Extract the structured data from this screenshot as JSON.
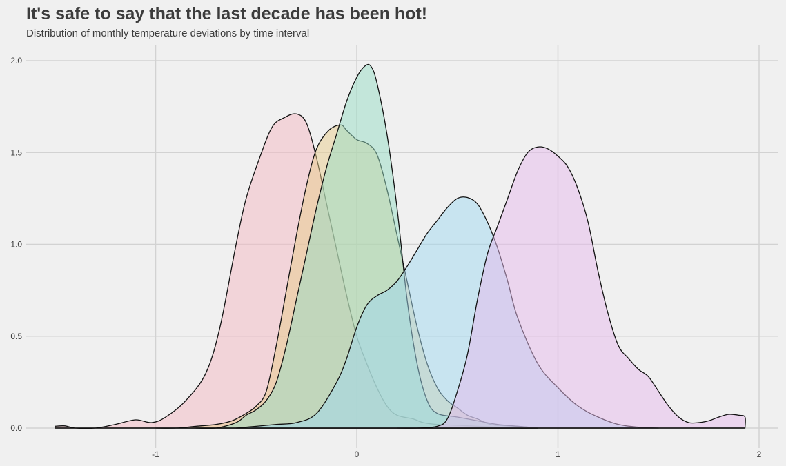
{
  "header": {
    "title": "It's safe to say that the last decade has been hot!",
    "subtitle": "Distribution of monthly temperature deviations by time interval"
  },
  "chart_data": {
    "type": "area",
    "title": "It's safe to say that the last decade has been hot!",
    "subtitle": "Distribution of monthly temperature deviations by time interval",
    "xlabel": "",
    "ylabel": "",
    "xlim": [
      -1.6,
      2.1
    ],
    "ylim": [
      0,
      2.0
    ],
    "xticks": [
      -1,
      0,
      1,
      2
    ],
    "xtick_labels": [
      "-1",
      "0",
      "1",
      "2"
    ],
    "yticks": [
      0,
      0.5,
      1.0,
      1.5,
      2.0
    ],
    "ytick_labels": [
      "0.0",
      "0.5",
      "1.0",
      "1.5",
      "2.0"
    ],
    "grid": true,
    "legend": "none",
    "series": [
      {
        "color": "#f4b8c1",
        "points": [
          [
            -1.5,
            0.01
          ],
          [
            -1.45,
            0.012
          ],
          [
            -1.4,
            0.0
          ],
          [
            -1.3,
            0.0
          ],
          [
            -1.2,
            0.02
          ],
          [
            -1.1,
            0.045
          ],
          [
            -1.02,
            0.03
          ],
          [
            -0.95,
            0.06
          ],
          [
            -0.85,
            0.15
          ],
          [
            -0.75,
            0.3
          ],
          [
            -0.68,
            0.55
          ],
          [
            -0.6,
            1.0
          ],
          [
            -0.55,
            1.25
          ],
          [
            -0.48,
            1.48
          ],
          [
            -0.42,
            1.64
          ],
          [
            -0.36,
            1.69
          ],
          [
            -0.3,
            1.71
          ],
          [
            -0.25,
            1.66
          ],
          [
            -0.2,
            1.47
          ],
          [
            -0.15,
            1.22
          ],
          [
            -0.1,
            0.97
          ],
          [
            -0.05,
            0.72
          ],
          [
            0.0,
            0.5
          ],
          [
            0.05,
            0.35
          ],
          [
            0.1,
            0.22
          ],
          [
            0.15,
            0.12
          ],
          [
            0.2,
            0.07
          ],
          [
            0.28,
            0.05
          ],
          [
            0.33,
            0.03
          ],
          [
            0.4,
            0.02
          ],
          [
            0.5,
            0.015
          ],
          [
            0.6,
            0.01
          ],
          [
            0.7,
            0.005
          ],
          [
            0.8,
            0.0
          ],
          [
            0.9,
            0.0
          ]
        ]
      },
      {
        "color": "#e8cc8c",
        "points": [
          [
            -1.0,
            0.0
          ],
          [
            -0.9,
            0.0
          ],
          [
            -0.8,
            0.01
          ],
          [
            -0.7,
            0.02
          ],
          [
            -0.62,
            0.04
          ],
          [
            -0.55,
            0.08
          ],
          [
            -0.5,
            0.12
          ],
          [
            -0.45,
            0.2
          ],
          [
            -0.4,
            0.45
          ],
          [
            -0.35,
            0.75
          ],
          [
            -0.3,
            1.05
          ],
          [
            -0.25,
            1.32
          ],
          [
            -0.2,
            1.52
          ],
          [
            -0.14,
            1.62
          ],
          [
            -0.08,
            1.65
          ],
          [
            -0.05,
            1.62
          ],
          [
            0.0,
            1.57
          ],
          [
            0.05,
            1.55
          ],
          [
            0.1,
            1.49
          ],
          [
            0.15,
            1.3
          ],
          [
            0.2,
            1.05
          ],
          [
            0.25,
            0.8
          ],
          [
            0.3,
            0.55
          ],
          [
            0.35,
            0.35
          ],
          [
            0.4,
            0.22
          ],
          [
            0.45,
            0.15
          ],
          [
            0.5,
            0.11
          ],
          [
            0.55,
            0.07
          ],
          [
            0.6,
            0.05
          ],
          [
            0.65,
            0.025
          ],
          [
            0.7,
            0.015
          ],
          [
            0.8,
            0.01
          ],
          [
            0.9,
            0.0
          ]
        ]
      },
      {
        "color": "#96dcc3",
        "points": [
          [
            -0.8,
            0.0
          ],
          [
            -0.7,
            0.0
          ],
          [
            -0.6,
            0.03
          ],
          [
            -0.55,
            0.07
          ],
          [
            -0.5,
            0.1
          ],
          [
            -0.45,
            0.15
          ],
          [
            -0.4,
            0.25
          ],
          [
            -0.35,
            0.45
          ],
          [
            -0.3,
            0.7
          ],
          [
            -0.25,
            0.95
          ],
          [
            -0.2,
            1.2
          ],
          [
            -0.15,
            1.42
          ],
          [
            -0.1,
            1.6
          ],
          [
            -0.05,
            1.78
          ],
          [
            0.0,
            1.91
          ],
          [
            0.04,
            1.97
          ],
          [
            0.07,
            1.97
          ],
          [
            0.1,
            1.88
          ],
          [
            0.15,
            1.6
          ],
          [
            0.2,
            1.2
          ],
          [
            0.25,
            0.7
          ],
          [
            0.3,
            0.35
          ],
          [
            0.35,
            0.15
          ],
          [
            0.4,
            0.08
          ],
          [
            0.5,
            0.06
          ],
          [
            0.6,
            0.04
          ],
          [
            0.7,
            0.02
          ],
          [
            0.8,
            0.01
          ],
          [
            0.9,
            0.0
          ]
        ]
      },
      {
        "color": "#a0d7f0",
        "points": [
          [
            -0.6,
            0.0
          ],
          [
            -0.5,
            0.01
          ],
          [
            -0.4,
            0.02
          ],
          [
            -0.3,
            0.03
          ],
          [
            -0.2,
            0.08
          ],
          [
            -0.1,
            0.25
          ],
          [
            -0.05,
            0.38
          ],
          [
            0.0,
            0.55
          ],
          [
            0.05,
            0.67
          ],
          [
            0.1,
            0.72
          ],
          [
            0.15,
            0.75
          ],
          [
            0.2,
            0.8
          ],
          [
            0.25,
            0.88
          ],
          [
            0.3,
            0.97
          ],
          [
            0.35,
            1.06
          ],
          [
            0.4,
            1.13
          ],
          [
            0.45,
            1.2
          ],
          [
            0.5,
            1.25
          ],
          [
            0.55,
            1.255
          ],
          [
            0.6,
            1.22
          ],
          [
            0.65,
            1.12
          ],
          [
            0.7,
            0.98
          ],
          [
            0.75,
            0.8
          ],
          [
            0.8,
            0.6
          ],
          [
            0.9,
            0.35
          ],
          [
            1.0,
            0.22
          ],
          [
            1.1,
            0.12
          ],
          [
            1.2,
            0.06
          ],
          [
            1.3,
            0.02
          ],
          [
            1.4,
            0.005
          ],
          [
            1.5,
            0.0
          ]
        ]
      },
      {
        "color": "#e6b9eb",
        "points": [
          [
            0.2,
            0.0
          ],
          [
            0.3,
            0.0
          ],
          [
            0.4,
            0.01
          ],
          [
            0.45,
            0.05
          ],
          [
            0.5,
            0.2
          ],
          [
            0.55,
            0.4
          ],
          [
            0.6,
            0.7
          ],
          [
            0.65,
            0.95
          ],
          [
            0.7,
            1.1
          ],
          [
            0.75,
            1.25
          ],
          [
            0.8,
            1.4
          ],
          [
            0.85,
            1.5
          ],
          [
            0.9,
            1.53
          ],
          [
            0.95,
            1.52
          ],
          [
            1.0,
            1.48
          ],
          [
            1.05,
            1.42
          ],
          [
            1.1,
            1.3
          ],
          [
            1.15,
            1.12
          ],
          [
            1.2,
            0.85
          ],
          [
            1.25,
            0.62
          ],
          [
            1.3,
            0.45
          ],
          [
            1.35,
            0.38
          ],
          [
            1.4,
            0.32
          ],
          [
            1.45,
            0.28
          ],
          [
            1.5,
            0.2
          ],
          [
            1.55,
            0.12
          ],
          [
            1.6,
            0.06
          ],
          [
            1.65,
            0.03
          ],
          [
            1.7,
            0.03
          ],
          [
            1.75,
            0.04
          ],
          [
            1.8,
            0.06
          ],
          [
            1.85,
            0.075
          ],
          [
            1.9,
            0.07
          ],
          [
            1.93,
            0.06
          ],
          [
            1.93,
            0.0
          ]
        ]
      }
    ]
  }
}
